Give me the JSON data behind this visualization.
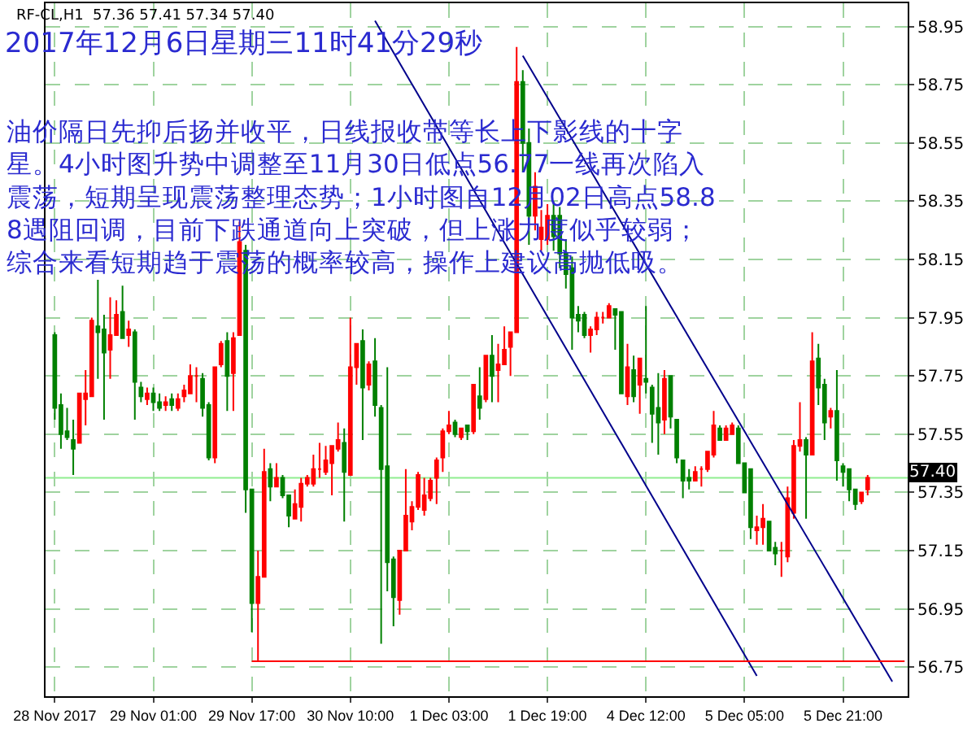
{
  "chart_data": {
    "type": "candlestick",
    "title": "2017年12月6日星期三11时41分29秒",
    "annotations": [
      "RF-CL,H1  57.36 57.41 57.34 57.40",
      "油价隔日先抑后扬并收平，日线报收带等长上下影线的十字星。4小时图升势中调整至11月30日低点56.77一线再次陷入震荡，短期呈现震荡整理态势；1小时图自12月02日高点58.88遇阻回调，目前下跌通道向上突破，但上涨力度似乎较弱；综合来看短期趋于震荡的概率较高，操作上建议高抛低吸。"
    ],
    "categories": [
      "28 Nov 2017",
      null,
      null,
      null,
      null,
      null,
      null,
      null,
      null,
      null,
      null,
      null,
      null,
      null,
      null,
      null,
      "29 Nov 01:00",
      null,
      null,
      null,
      null,
      null,
      null,
      null,
      null,
      null,
      null,
      null,
      null,
      null,
      null,
      null,
      "29 Nov 17:00",
      null,
      null,
      null,
      null,
      null,
      null,
      null,
      null,
      null,
      null,
      null,
      null,
      null,
      null,
      null,
      "30 Nov 10:00",
      null,
      null,
      null,
      null,
      null,
      null,
      null,
      null,
      null,
      null,
      null,
      null,
      null,
      null,
      null,
      "1 Dec 03:00",
      null,
      null,
      null,
      null,
      null,
      null,
      null,
      null,
      null,
      null,
      null,
      null,
      null,
      null,
      null,
      "1 Dec 19:00",
      null,
      null,
      null,
      null,
      null,
      null,
      null,
      null,
      null,
      null,
      null,
      null,
      null,
      null,
      null,
      "4 Dec 12:00",
      null,
      null,
      null,
      null,
      null,
      null,
      null,
      null,
      null,
      null,
      null,
      null,
      null,
      null,
      null,
      "5 Dec 05:00",
      null,
      null,
      null,
      null,
      null,
      null,
      null,
      null,
      null,
      null,
      null,
      null,
      null,
      null,
      null,
      "5 Dec 21:00",
      null,
      null,
      null,
      null,
      null,
      null,
      null,
      null,
      null,
      null
    ],
    "ohlc": [
      [
        57.89,
        57.9,
        57.6,
        57.64
      ],
      [
        57.65,
        57.69,
        57.5,
        57.55
      ],
      [
        57.56,
        57.64,
        57.53,
        57.54
      ],
      [
        57.53,
        57.6,
        57.41,
        57.5
      ],
      [
        57.52,
        57.69,
        57.52,
        57.69
      ],
      [
        57.67,
        57.77,
        57.58,
        57.69
      ],
      [
        57.68,
        57.95,
        57.68,
        57.94
      ],
      [
        57.92,
        58.08,
        57.74,
        57.9
      ],
      [
        57.91,
        57.96,
        57.6,
        57.83
      ],
      [
        57.84,
        58.02,
        57.74,
        57.89
      ],
      [
        57.89,
        58.01,
        57.89,
        57.96
      ],
      [
        57.97,
        58.06,
        57.88,
        57.88
      ],
      [
        57.89,
        57.94,
        57.85,
        57.91
      ],
      [
        57.9,
        57.91,
        57.6,
        57.73
      ],
      [
        57.71,
        57.73,
        57.66,
        57.68
      ],
      [
        57.67,
        57.71,
        57.65,
        57.69
      ],
      [
        57.69,
        57.71,
        57.63,
        57.66
      ],
      [
        57.66,
        57.69,
        57.63,
        57.64
      ],
      [
        57.65,
        57.68,
        57.63,
        57.66
      ],
      [
        57.67,
        57.69,
        57.63,
        57.65
      ],
      [
        57.64,
        57.69,
        57.63,
        57.67
      ],
      [
        57.68,
        57.72,
        57.66,
        57.7
      ],
      [
        57.69,
        57.79,
        57.69,
        57.75
      ],
      [
        57.75,
        57.78,
        57.66,
        57.75
      ],
      [
        57.74,
        57.76,
        57.61,
        57.64
      ],
      [
        57.65,
        57.66,
        57.46,
        57.47
      ],
      [
        57.47,
        57.78,
        57.45,
        57.78
      ],
      [
        57.79,
        57.87,
        57.78,
        57.86
      ],
      [
        57.87,
        57.9,
        57.63,
        57.75
      ],
      [
        57.76,
        57.9,
        57.63,
        57.88
      ],
      [
        57.89,
        58.28,
        57.89,
        58.21
      ],
      [
        58.18,
        58.2,
        57.28,
        57.36
      ],
      [
        57.36,
        57.36,
        56.87,
        56.97
      ],
      [
        56.97,
        57.15,
        56.77,
        57.06
      ],
      [
        57.06,
        57.5,
        57.06,
        57.42
      ],
      [
        57.43,
        57.45,
        57.32,
        57.37
      ],
      [
        57.37,
        57.45,
        57.37,
        57.4
      ],
      [
        57.4,
        57.41,
        57.33,
        57.34
      ],
      [
        57.34,
        57.34,
        57.23,
        57.27
      ],
      [
        57.26,
        57.36,
        57.26,
        57.31
      ],
      [
        57.3,
        57.4,
        57.25,
        57.38
      ],
      [
        57.38,
        57.41,
        57.37,
        57.4
      ],
      [
        57.38,
        57.48,
        57.37,
        57.43
      ],
      [
        57.43,
        57.52,
        57.4,
        57.43
      ],
      [
        57.42,
        57.51,
        57.41,
        57.46
      ],
      [
        57.45,
        57.51,
        57.34,
        57.51
      ],
      [
        57.5,
        57.59,
        57.49,
        57.53
      ],
      [
        57.52,
        57.57,
        57.25,
        57.42
      ],
      [
        57.41,
        57.95,
        57.41,
        57.78
      ],
      [
        57.78,
        57.86,
        57.72,
        57.86
      ],
      [
        57.87,
        57.91,
        57.53,
        57.71
      ],
      [
        57.72,
        57.8,
        57.7,
        57.79
      ],
      [
        57.8,
        57.88,
        57.61,
        57.65
      ],
      [
        57.64,
        57.65,
        56.83,
        57.43
      ],
      [
        57.44,
        57.78,
        57.01,
        57.11
      ],
      [
        57.12,
        57.13,
        56.89,
        56.99
      ],
      [
        56.98,
        57.15,
        56.93,
        57.15
      ],
      [
        57.15,
        57.43,
        57.15,
        57.27
      ],
      [
        57.25,
        57.32,
        57.22,
        57.3
      ],
      [
        57.3,
        57.42,
        57.29,
        57.41
      ],
      [
        57.29,
        57.4,
        57.27,
        57.34
      ],
      [
        57.33,
        57.4,
        57.32,
        57.39
      ],
      [
        57.4,
        57.47,
        57.31,
        57.46
      ],
      [
        57.47,
        57.57,
        57.42,
        57.56
      ],
      [
        57.56,
        57.63,
        57.55,
        57.58
      ],
      [
        57.59,
        57.6,
        57.54,
        57.55
      ],
      [
        57.54,
        57.57,
        57.53,
        57.57
      ],
      [
        57.58,
        57.58,
        57.53,
        57.56
      ],
      [
        57.56,
        57.72,
        57.55,
        57.72
      ],
      [
        57.68,
        57.78,
        57.6,
        57.64
      ],
      [
        57.67,
        57.82,
        57.66,
        57.82
      ],
      [
        57.82,
        57.89,
        57.66,
        57.75
      ],
      [
        57.77,
        57.86,
        57.66,
        57.79
      ],
      [
        57.79,
        57.92,
        57.79,
        57.84
      ],
      [
        57.85,
        57.9,
        57.75,
        57.9
      ],
      [
        57.9,
        58.88,
        57.9,
        58.76
      ],
      [
        58.76,
        58.8,
        58.45,
        58.55
      ],
      [
        58.55,
        58.6,
        58.2,
        58.3
      ],
      [
        58.3,
        58.45,
        58.25,
        58.4
      ],
      [
        58.22,
        58.32,
        58.18,
        58.26
      ],
      [
        58.22,
        58.34,
        58.2,
        58.3
      ],
      [
        58.3,
        58.35,
        58.18,
        58.23
      ],
      [
        58.3,
        58.33,
        58.12,
        58.17
      ],
      [
        58.17,
        58.22,
        58.05,
        58.1
      ],
      [
        58.12,
        58.16,
        57.84,
        57.95
      ],
      [
        57.96,
        57.99,
        57.9,
        57.94
      ],
      [
        57.96,
        57.97,
        57.88,
        57.89
      ],
      [
        57.89,
        57.92,
        57.83,
        57.91
      ],
      [
        57.91,
        57.97,
        57.89,
        57.95
      ],
      [
        57.95,
        57.97,
        57.93,
        57.95
      ],
      [
        57.95,
        58.0,
        57.95,
        57.99
      ],
      [
        57.98,
        57.98,
        57.84,
        57.96
      ],
      [
        57.97,
        57.97,
        57.69,
        57.69
      ],
      [
        57.68,
        57.86,
        57.65,
        57.78
      ],
      [
        57.77,
        57.82,
        57.66,
        57.68
      ],
      [
        57.72,
        57.81,
        57.62,
        57.81
      ],
      [
        57.74,
        57.99,
        57.69,
        57.73
      ],
      [
        57.71,
        57.72,
        57.52,
        57.62
      ],
      [
        57.64,
        57.76,
        57.48,
        57.59
      ],
      [
        57.6,
        57.77,
        57.55,
        57.74
      ],
      [
        57.75,
        57.75,
        57.57,
        57.61
      ],
      [
        57.6,
        57.6,
        57.45,
        57.47
      ],
      [
        57.46,
        57.46,
        57.33,
        57.39
      ],
      [
        57.4,
        57.43,
        57.36,
        57.39
      ],
      [
        57.39,
        57.44,
        57.39,
        57.42
      ],
      [
        57.43,
        57.44,
        57.37,
        57.43
      ],
      [
        57.43,
        57.49,
        57.42,
        57.49
      ],
      [
        57.48,
        57.63,
        57.47,
        57.58
      ],
      [
        57.57,
        57.58,
        57.53,
        57.53
      ],
      [
        57.53,
        57.58,
        57.53,
        57.57
      ],
      [
        57.55,
        57.59,
        57.55,
        57.58
      ],
      [
        57.57,
        57.58,
        57.45,
        57.45
      ],
      [
        57.45,
        57.45,
        57.35,
        57.35
      ],
      [
        57.43,
        57.43,
        57.19,
        57.23
      ],
      [
        57.22,
        57.27,
        57.17,
        57.23
      ],
      [
        57.23,
        57.31,
        57.17,
        57.26
      ],
      [
        57.25,
        57.25,
        57.15,
        57.15
      ],
      [
        57.16,
        57.18,
        57.1,
        57.14
      ],
      [
        57.15,
        57.18,
        57.06,
        57.15
      ],
      [
        57.13,
        57.37,
        57.11,
        57.33
      ],
      [
        57.28,
        57.53,
        57.26,
        57.51
      ],
      [
        57.51,
        57.66,
        57.49,
        57.53
      ],
      [
        57.53,
        57.54,
        57.26,
        57.48
      ],
      [
        57.48,
        57.9,
        57.48,
        57.8
      ],
      [
        57.81,
        57.86,
        57.65,
        57.71
      ],
      [
        57.72,
        57.74,
        57.53,
        57.59
      ],
      [
        57.61,
        57.64,
        57.57,
        57.63
      ],
      [
        57.63,
        57.77,
        57.39,
        57.46
      ],
      [
        57.44,
        57.45,
        57.37,
        57.42
      ],
      [
        57.43,
        57.43,
        57.32,
        57.36
      ],
      [
        57.36,
        57.36,
        57.29,
        57.31
      ],
      [
        57.32,
        57.35,
        57.31,
        57.35
      ],
      [
        57.36,
        57.41,
        57.34,
        57.4
      ],
      null,
      null,
      null,
      null,
      null,
      null
    ],
    "series": [
      {
        "type": "line",
        "color": "#00008b",
        "values": [
          null,
          null,
          null,
          null,
          null,
          null,
          null,
          null,
          null,
          null,
          null,
          null,
          null,
          null,
          null,
          null,
          null,
          null,
          null,
          null,
          null,
          null,
          null,
          null,
          null,
          null,
          null,
          null,
          null,
          null,
          null,
          null,
          null,
          null,
          null,
          null,
          null,
          null,
          null,
          null,
          null,
          null,
          null,
          null,
          null,
          null,
          null,
          null,
          null,
          null,
          null,
          null,
          null,
          null,
          null,
          null,
          null,
          null,
          null,
          null,
          null,
          null,
          null,
          null,
          null,
          null,
          null,
          null,
          null,
          null,
          null,
          null,
          null,
          null,
          null,
          null,
          58.85,
          null,
          null,
          null,
          null,
          null,
          null,
          null,
          null,
          null,
          null,
          null,
          null,
          null,
          null,
          null,
          null,
          null,
          null,
          null,
          null,
          null,
          null,
          null,
          null,
          null,
          null,
          null,
          null,
          null,
          null,
          null,
          null,
          null,
          null,
          null,
          null,
          null,
          null,
          null,
          null,
          null,
          null,
          null,
          null,
          null,
          null,
          null,
          null,
          null,
          null,
          null,
          null,
          null,
          null,
          null,
          null,
          null,
          null,
          null,
          56.7,
          null,
          null
        ]
      },
      {
        "type": "line",
        "color": "#00008b",
        "values": [
          null,
          null,
          null,
          null,
          null,
          null,
          null,
          null,
          null,
          null,
          null,
          null,
          null,
          null,
          null,
          null,
          null,
          null,
          null,
          null,
          null,
          null,
          null,
          null,
          null,
          null,
          null,
          null,
          null,
          null,
          null,
          null,
          null,
          null,
          null,
          null,
          null,
          null,
          null,
          null,
          null,
          null,
          null,
          null,
          null,
          null,
          null,
          null,
          null,
          null,
          null,
          null,
          58.97,
          null,
          null,
          null,
          null,
          null,
          null,
          null,
          null,
          null,
          null,
          null,
          null,
          null,
          null,
          null,
          null,
          null,
          null,
          null,
          null,
          null,
          null,
          null,
          null,
          null,
          null,
          null,
          null,
          null,
          null,
          null,
          null,
          null,
          null,
          null,
          null,
          null,
          null,
          null,
          null,
          null,
          null,
          null,
          null,
          null,
          null,
          null,
          null,
          null,
          null,
          null,
          null,
          null,
          null,
          null,
          null,
          null,
          null,
          null,
          null,
          null,
          56.72,
          null,
          null,
          null,
          null,
          null,
          null,
          null,
          null,
          null,
          null,
          null,
          null,
          null,
          null,
          null,
          null,
          null,
          null,
          null,
          null,
          null,
          null,
          null,
          null
        ]
      },
      {
        "type": "line",
        "color": "#ff0000",
        "values": [
          null,
          null,
          null,
          null,
          null,
          null,
          null,
          null,
          null,
          null,
          null,
          null,
          null,
          null,
          null,
          null,
          null,
          null,
          null,
          null,
          null,
          null,
          null,
          null,
          null,
          null,
          null,
          null,
          null,
          null,
          null,
          null,
          56.77,
          null,
          null,
          null,
          null,
          null,
          null,
          null,
          null,
          null,
          null,
          null,
          null,
          null,
          null,
          null,
          null,
          null,
          null,
          null,
          null,
          null,
          null,
          null,
          null,
          null,
          null,
          null,
          null,
          null,
          null,
          null,
          null,
          null,
          null,
          null,
          null,
          null,
          null,
          null,
          null,
          null,
          null,
          null,
          null,
          null,
          null,
          null,
          null,
          null,
          null,
          null,
          null,
          null,
          null,
          null,
          null,
          null,
          null,
          null,
          null,
          null,
          null,
          null,
          null,
          null,
          null,
          null,
          null,
          null,
          null,
          null,
          null,
          null,
          null,
          null,
          null,
          null,
          null,
          null,
          null,
          null,
          null,
          null,
          null,
          null,
          null,
          null,
          null,
          null,
          null,
          null,
          null,
          null,
          null,
          null,
          null,
          null,
          null,
          null,
          null,
          null,
          null,
          null,
          null,
          null,
          56.77
        ]
      }
    ],
    "ref_lines": [
      {
        "axis": "y",
        "value": 57.4,
        "label": "57.40",
        "color": "#90ee90"
      }
    ],
    "ylim": [
      56.65,
      59.03
    ],
    "yticks": [
      56.75,
      56.95,
      57.15,
      57.35,
      57.55,
      57.75,
      57.95,
      58.15,
      58.35,
      58.55,
      58.75,
      58.95
    ],
    "grid": true
  }
}
